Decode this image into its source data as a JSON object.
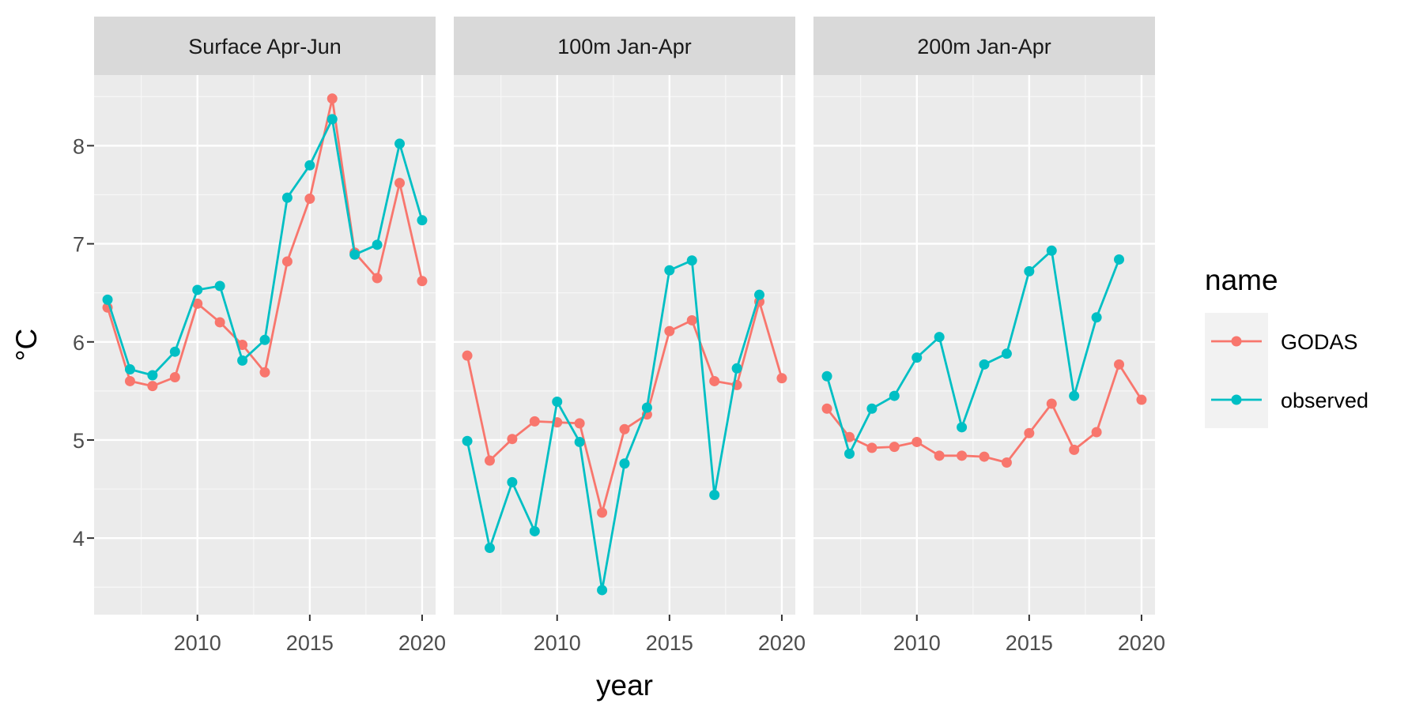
{
  "chart_data": {
    "type": "line",
    "xlabel": "year",
    "ylabel": "°C",
    "xlim": [
      2005.4,
      2020.6
    ],
    "ylim": [
      3.22,
      8.72
    ],
    "x_ticks": [
      2010,
      2015,
      2020
    ],
    "y_ticks": [
      4,
      5,
      6,
      7,
      8
    ],
    "grid": true,
    "legend": {
      "title": "name",
      "position": "right",
      "entries": [
        {
          "label": "GODAS",
          "color": "#F8766D"
        },
        {
          "label": "observed",
          "color": "#00BFC4"
        }
      ]
    },
    "panels": [
      {
        "title": "Surface Apr-Jun",
        "series": [
          {
            "name": "GODAS",
            "color": "#F8766D",
            "x": [
              2006,
              2007,
              2008,
              2009,
              2010,
              2011,
              2012,
              2013,
              2014,
              2015,
              2016,
              2017,
              2018,
              2019,
              2020
            ],
            "y": [
              6.35,
              5.6,
              5.55,
              5.64,
              6.39,
              6.2,
              5.97,
              5.69,
              6.82,
              7.46,
              8.48,
              6.91,
              6.65,
              7.62,
              6.62
            ]
          },
          {
            "name": "observed",
            "color": "#00BFC4",
            "x": [
              2006,
              2007,
              2008,
              2009,
              2010,
              2011,
              2012,
              2013,
              2014,
              2015,
              2016,
              2017,
              2018,
              2019,
              2020
            ],
            "y": [
              6.43,
              5.72,
              5.66,
              5.9,
              6.53,
              6.57,
              5.81,
              6.02,
              7.47,
              7.8,
              8.27,
              6.89,
              6.99,
              8.02,
              7.24
            ]
          }
        ]
      },
      {
        "title": "100m Jan-Apr",
        "series": [
          {
            "name": "GODAS",
            "color": "#F8766D",
            "x": [
              2006,
              2007,
              2008,
              2009,
              2010,
              2011,
              2012,
              2013,
              2014,
              2015,
              2016,
              2017,
              2018,
              2019,
              2020
            ],
            "y": [
              5.86,
              4.79,
              5.01,
              5.19,
              5.18,
              5.17,
              4.26,
              5.11,
              5.26,
              6.11,
              6.22,
              5.6,
              5.56,
              6.41,
              5.63
            ]
          },
          {
            "name": "observed",
            "color": "#00BFC4",
            "x": [
              2006,
              2007,
              2008,
              2009,
              2010,
              2011,
              2012,
              2013,
              2014,
              2015,
              2016,
              2017,
              2018,
              2019
            ],
            "y": [
              4.99,
              3.9,
              4.57,
              4.07,
              5.39,
              4.98,
              3.47,
              4.76,
              5.33,
              6.73,
              6.83,
              4.44,
              5.73,
              6.48
            ]
          }
        ]
      },
      {
        "title": "200m Jan-Apr",
        "series": [
          {
            "name": "GODAS",
            "color": "#F8766D",
            "x": [
              2006,
              2007,
              2008,
              2009,
              2010,
              2011,
              2012,
              2013,
              2014,
              2015,
              2016,
              2017,
              2018,
              2019,
              2020
            ],
            "y": [
              5.32,
              5.03,
              4.92,
              4.93,
              4.98,
              4.84,
              4.84,
              4.83,
              4.77,
              5.07,
              5.37,
              4.9,
              5.08,
              5.77,
              5.41
            ]
          },
          {
            "name": "observed",
            "color": "#00BFC4",
            "x": [
              2006,
              2007,
              2008,
              2009,
              2010,
              2011,
              2012,
              2013,
              2014,
              2015,
              2016,
              2017,
              2018,
              2019
            ],
            "y": [
              5.65,
              4.86,
              5.32,
              5.45,
              5.84,
              6.05,
              5.13,
              5.77,
              5.88,
              6.72,
              6.93,
              5.45,
              6.25,
              6.84
            ]
          }
        ]
      }
    ]
  }
}
